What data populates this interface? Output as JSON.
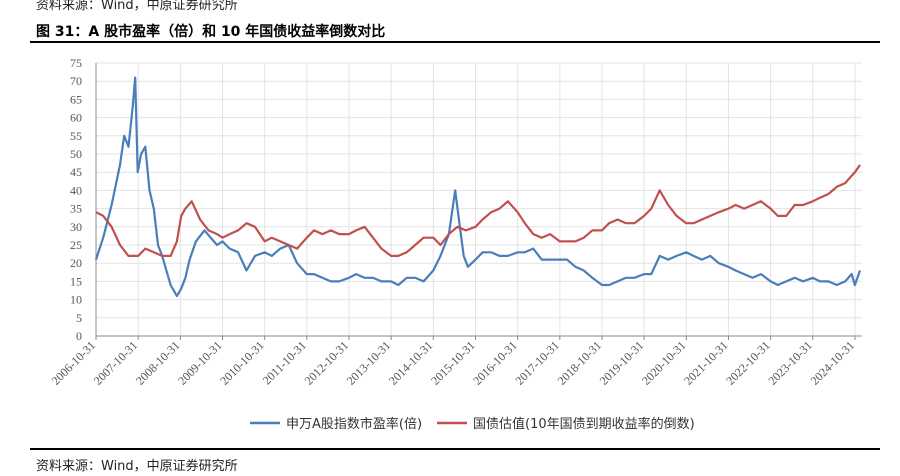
{
  "source_top": "资料来源：Wind，中原证券研究所",
  "figure_title": "图 31：A 股市盈率（倍）和 10 年国债收益率倒数对比",
  "source_bottom": "资料来源：Wind，中原证券研究所",
  "chart_data": {
    "type": "line",
    "title": "图 31：A 股市盈率（倍）和 10 年国债收益率倒数对比",
    "xlabel": "",
    "ylabel": "",
    "ylim": [
      0,
      75
    ],
    "yticks": [
      0,
      5,
      10,
      15,
      20,
      25,
      30,
      35,
      40,
      45,
      50,
      55,
      60,
      65,
      70,
      75
    ],
    "xlim": [
      "2006-10-31",
      "2024-12-31"
    ],
    "categories": [
      "2006-10-31",
      "2007-10-31",
      "2008-10-31",
      "2009-10-31",
      "2010-10-31",
      "2011-10-31",
      "2012-10-31",
      "2013-10-31",
      "2014-10-31",
      "2015-10-31",
      "2016-10-31",
      "2017-10-31",
      "2018-10-31",
      "2019-10-31",
      "2020-10-31",
      "2021-10-31",
      "2022-10-31",
      "2023-10-31",
      "2024-10-31"
    ],
    "grid": true,
    "legend_position": "bottom",
    "series": [
      {
        "name": "申万A股指数市盈率(倍)",
        "color": "#4a7ebb",
        "x": [
          2006.83,
          2007.0,
          2007.2,
          2007.4,
          2007.5,
          2007.6,
          2007.7,
          2007.76,
          2007.82,
          2007.9,
          2008.0,
          2008.1,
          2008.2,
          2008.3,
          2008.4,
          2008.5,
          2008.6,
          2008.75,
          2008.85,
          2008.95,
          2009.05,
          2009.2,
          2009.4,
          2009.55,
          2009.7,
          2009.83,
          2010.0,
          2010.2,
          2010.4,
          2010.6,
          2010.83,
          2011.0,
          2011.2,
          2011.4,
          2011.6,
          2011.83,
          2012.0,
          2012.2,
          2012.4,
          2012.6,
          2012.83,
          2013.0,
          2013.2,
          2013.4,
          2013.6,
          2013.83,
          2014.0,
          2014.2,
          2014.4,
          2014.6,
          2014.83,
          2015.0,
          2015.2,
          2015.35,
          2015.45,
          2015.55,
          2015.65,
          2015.83,
          2016.0,
          2016.2,
          2016.4,
          2016.6,
          2016.83,
          2017.0,
          2017.2,
          2017.4,
          2017.6,
          2017.83,
          2018.0,
          2018.2,
          2018.4,
          2018.6,
          2018.83,
          2019.0,
          2019.2,
          2019.4,
          2019.6,
          2019.83,
          2020.0,
          2020.2,
          2020.4,
          2020.6,
          2020.83,
          2021.0,
          2021.2,
          2021.4,
          2021.6,
          2021.83,
          2022.0,
          2022.2,
          2022.4,
          2022.6,
          2022.83,
          2023.0,
          2023.2,
          2023.4,
          2023.6,
          2023.83,
          2024.0,
          2024.2,
          2024.4,
          2024.6,
          2024.75,
          2024.83,
          2024.95
        ],
        "values": [
          21,
          27,
          36,
          47,
          55,
          52,
          63,
          71,
          45,
          50,
          52,
          40,
          35,
          25,
          22,
          18,
          14,
          11,
          13,
          16,
          21,
          26,
          29,
          27,
          25,
          26,
          24,
          23,
          18,
          22,
          23,
          22,
          24,
          25,
          20,
          17,
          17,
          16,
          15,
          15,
          16,
          17,
          16,
          16,
          15,
          15,
          14,
          16,
          16,
          15,
          18,
          22,
          28,
          40,
          31,
          22,
          19,
          21,
          23,
          23,
          22,
          22,
          23,
          23,
          24,
          21,
          21,
          21,
          21,
          19,
          18,
          16,
          14,
          14,
          15,
          16,
          16,
          17,
          17,
          22,
          21,
          22,
          23,
          22,
          21,
          22,
          20,
          19,
          18,
          17,
          16,
          17,
          15,
          14,
          15,
          16,
          15,
          16,
          15,
          15,
          14,
          15,
          17,
          14,
          18
        ]
      },
      {
        "name": "国债估值(10年国债到期收益率的倒数)",
        "color": "#c0504d",
        "x": [
          2006.83,
          2007.0,
          2007.2,
          2007.4,
          2007.6,
          2007.83,
          2008.0,
          2008.2,
          2008.4,
          2008.6,
          2008.75,
          2008.85,
          2008.95,
          2009.1,
          2009.3,
          2009.5,
          2009.7,
          2009.83,
          2010.0,
          2010.2,
          2010.4,
          2010.6,
          2010.83,
          2011.0,
          2011.2,
          2011.4,
          2011.6,
          2011.83,
          2012.0,
          2012.2,
          2012.4,
          2012.6,
          2012.83,
          2013.0,
          2013.2,
          2013.4,
          2013.6,
          2013.83,
          2014.0,
          2014.2,
          2014.4,
          2014.6,
          2014.83,
          2015.0,
          2015.2,
          2015.4,
          2015.6,
          2015.83,
          2016.0,
          2016.2,
          2016.4,
          2016.6,
          2016.83,
          2017.0,
          2017.2,
          2017.4,
          2017.6,
          2017.83,
          2018.0,
          2018.2,
          2018.4,
          2018.6,
          2018.83,
          2019.0,
          2019.2,
          2019.4,
          2019.6,
          2019.83,
          2020.0,
          2020.2,
          2020.4,
          2020.6,
          2020.83,
          2021.0,
          2021.2,
          2021.4,
          2021.6,
          2021.83,
          2022.0,
          2022.2,
          2022.4,
          2022.6,
          2022.83,
          2023.0,
          2023.2,
          2023.4,
          2023.6,
          2023.83,
          2024.0,
          2024.2,
          2024.4,
          2024.6,
          2024.75,
          2024.83,
          2024.95
        ],
        "values": [
          34,
          33,
          30,
          25,
          22,
          22,
          24,
          23,
          22,
          22,
          26,
          33,
          35,
          37,
          32,
          29,
          28,
          27,
          28,
          29,
          31,
          30,
          26,
          27,
          26,
          25,
          24,
          27,
          29,
          28,
          29,
          28,
          28,
          29,
          30,
          27,
          24,
          22,
          22,
          23,
          25,
          27,
          27,
          25,
          28,
          30,
          29,
          30,
          32,
          34,
          35,
          37,
          34,
          31,
          28,
          27,
          28,
          26,
          26,
          26,
          27,
          29,
          29,
          31,
          32,
          31,
          31,
          33,
          35,
          40,
          36,
          33,
          31,
          31,
          32,
          33,
          34,
          35,
          36,
          35,
          36,
          37,
          35,
          33,
          33,
          36,
          36,
          37,
          38,
          39,
          41,
          42,
          44,
          45,
          47
        ]
      }
    ]
  }
}
